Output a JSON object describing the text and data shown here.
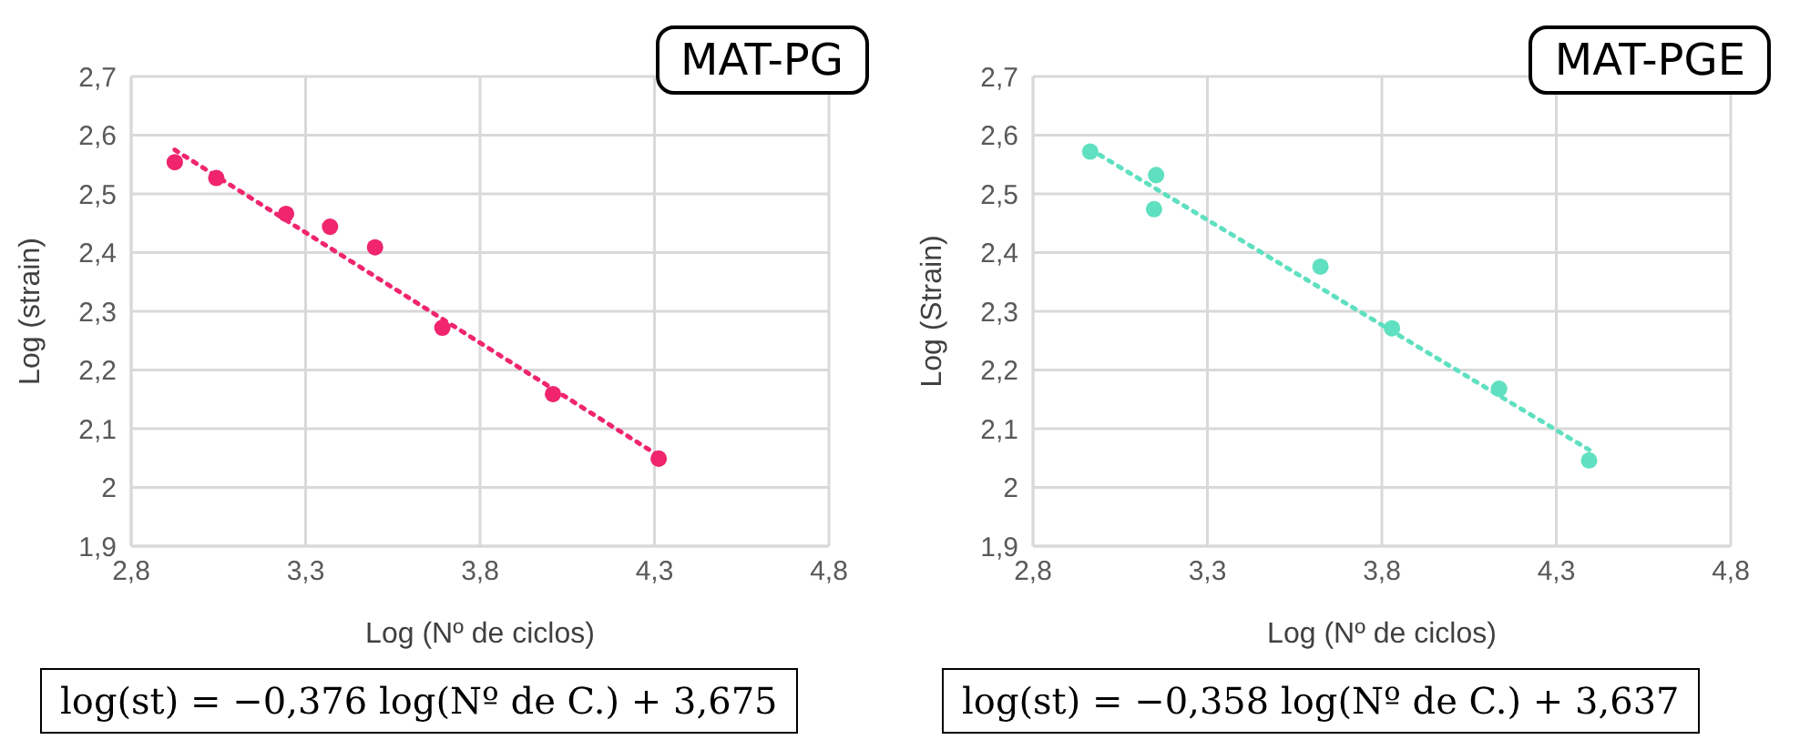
{
  "chart_data": [
    {
      "type": "scatter",
      "title": "MAT-PG",
      "xlabel": "Log (Nº de ciclos)",
      "ylabel": "Log (strain)",
      "annotations": [
        "log(st) = −0,376 log(Nº de C.) + 3,675"
      ],
      "xlim": [
        2.8,
        4.8
      ],
      "xticks": [
        {
          "value": 2.8,
          "label": "2,8"
        },
        {
          "value": 3.3,
          "label": "3,3"
        },
        {
          "value": 3.8,
          "label": "3,8"
        },
        {
          "value": 4.3,
          "label": "4,3"
        },
        {
          "value": 4.8,
          "label": "4,8"
        }
      ],
      "ylim": [
        1.9,
        2.7
      ],
      "yticks": [
        {
          "value": 1.9,
          "label": "1,9"
        },
        2,
        {
          "value": 2.1,
          "label": "2,1"
        },
        {
          "value": 2.2,
          "label": "2,2"
        },
        {
          "value": 2.3,
          "label": "2,3"
        },
        {
          "value": 2.4,
          "label": "2,4"
        },
        {
          "value": 2.5,
          "label": "2,5"
        },
        {
          "value": 2.6,
          "label": "2,6"
        },
        {
          "value": 2.7,
          "label": "2,7"
        }
      ],
      "grid": true,
      "series": [
        {
          "marker": "circle",
          "color": "#f0256e",
          "x": [
            2.925,
            3.044,
            3.244,
            3.37,
            3.499,
            3.692,
            4.009,
            4.312
          ],
          "values": [
            2.554,
            2.527,
            2.466,
            2.444,
            2.409,
            2.272,
            2.159,
            2.049
          ]
        },
        {
          "type": "line",
          "marker": "none",
          "color": "#f0256e",
          "line_style": "dotted",
          "x": [
            2.925,
            4.312
          ],
          "values": [
            2.575,
            2.054
          ]
        }
      ]
    },
    {
      "type": "scatter",
      "title": "MAT-PGE",
      "xlabel": "Log (Nº de ciclos)",
      "ylabel": "Log (Strain)",
      "annotations": [
        "log(st) = −0,358 log(Nº de C.) + 3,637"
      ],
      "xlim": [
        2.8,
        4.8
      ],
      "xticks": [
        {
          "value": 2.8,
          "label": "2,8"
        },
        {
          "value": 3.3,
          "label": "3,3"
        },
        {
          "value": 3.8,
          "label": "3,8"
        },
        {
          "value": 4.3,
          "label": "4,3"
        },
        {
          "value": 4.8,
          "label": "4,8"
        }
      ],
      "ylim": [
        1.9,
        2.7
      ],
      "yticks": [
        {
          "value": 1.9,
          "label": "1,9"
        },
        2,
        {
          "value": 2.1,
          "label": "2,1"
        },
        {
          "value": 2.2,
          "label": "2,2"
        },
        {
          "value": 2.3,
          "label": "2,3"
        },
        {
          "value": 2.4,
          "label": "2,4"
        },
        {
          "value": 2.5,
          "label": "2,5"
        },
        {
          "value": 2.6,
          "label": "2,6"
        },
        {
          "value": 2.7,
          "label": "2,7"
        }
      ],
      "grid": true,
      "series": [
        {
          "marker": "circle",
          "color": "#5fe0c0",
          "x": [
            2.964,
            3.153,
            3.147,
            3.624,
            3.829,
            4.136,
            4.394
          ],
          "values": [
            2.572,
            2.532,
            2.474,
            2.376,
            2.271,
            2.168,
            2.046
          ]
        },
        {
          "type": "line",
          "marker": "none",
          "color": "#5fe0c0",
          "line_style": "dotted",
          "x": [
            2.964,
            4.394
          ],
          "values": [
            2.576,
            2.064
          ]
        }
      ]
    }
  ]
}
